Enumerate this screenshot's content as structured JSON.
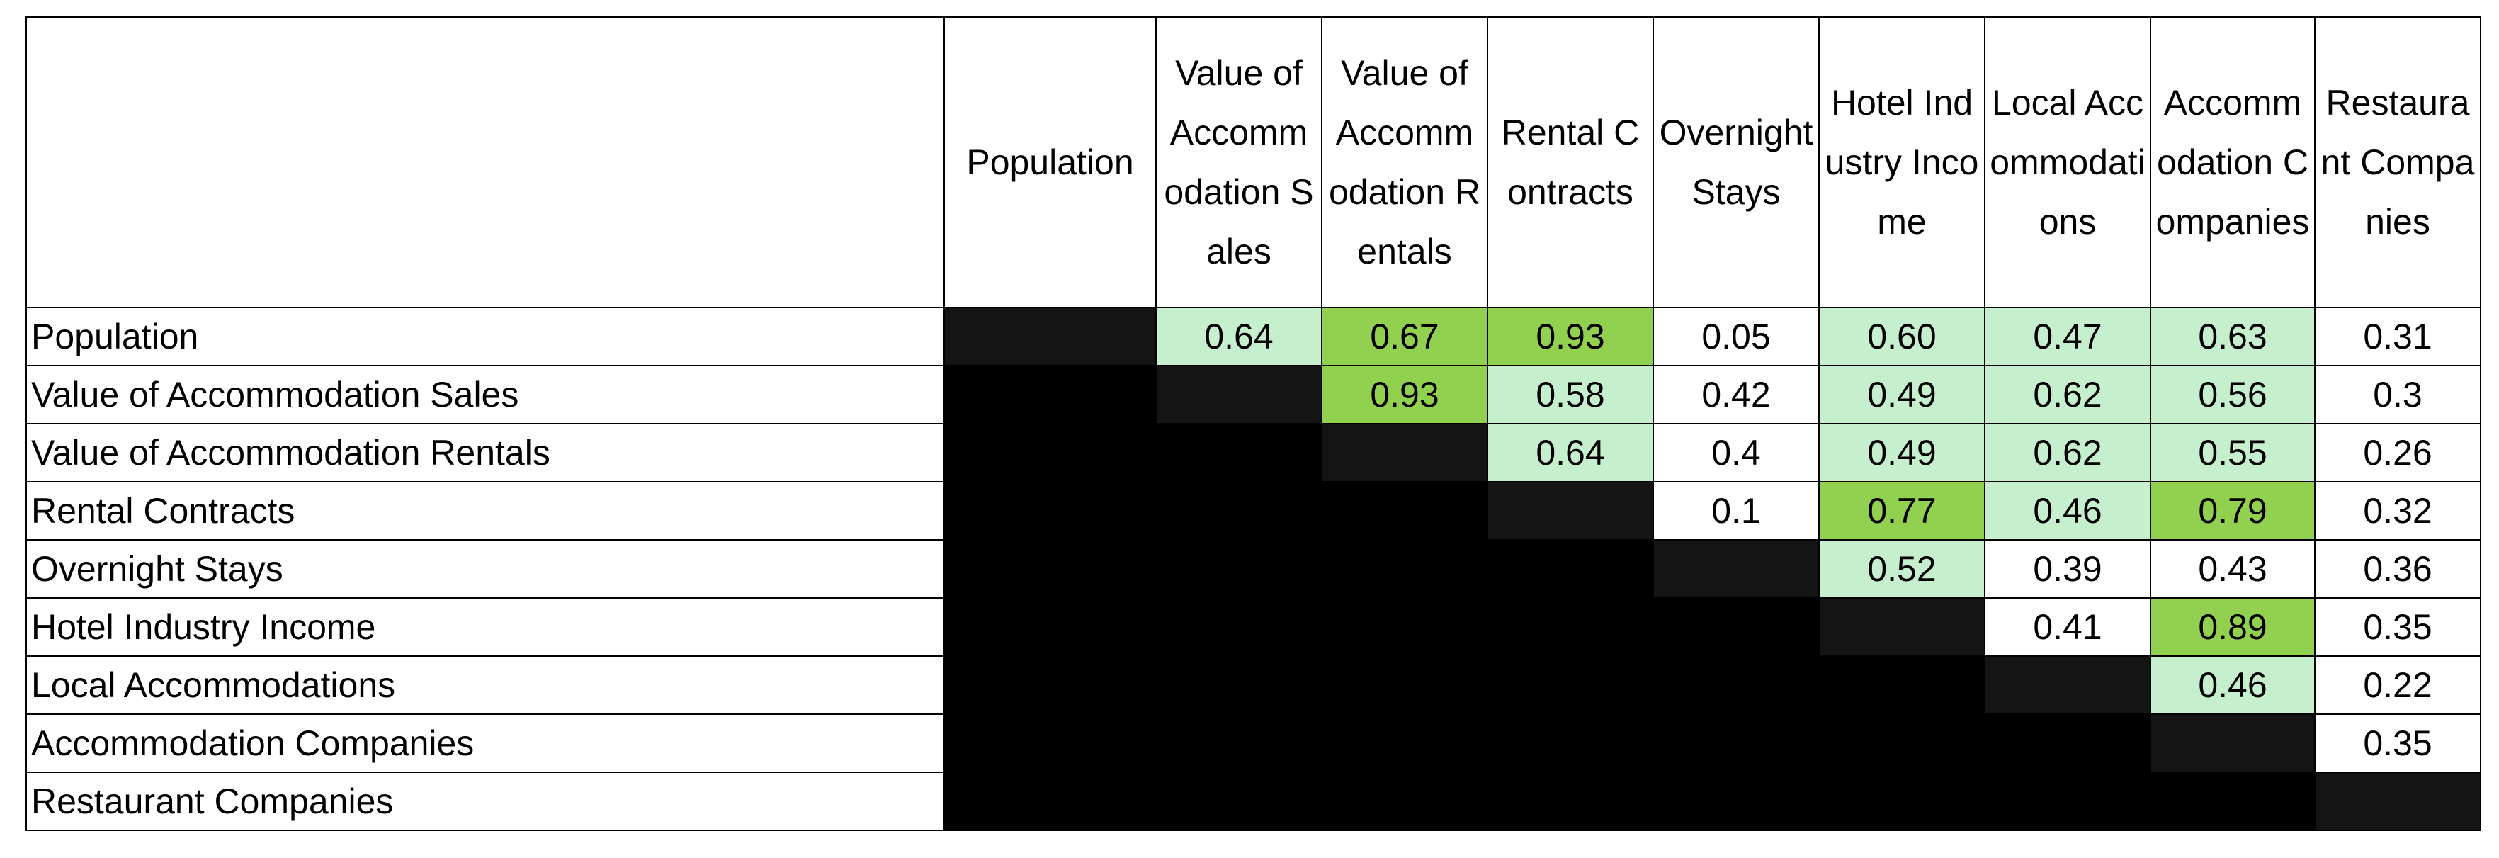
{
  "table": {
    "columns": [
      "Population",
      "Value of Accommodation Sales",
      "Value of Accommodation Rentals",
      "Rental Contracts",
      "Overnight Stays",
      "Hotel Industry Income",
      "Local Accommodations",
      "Accommodation Companies",
      "Restaurant Companies"
    ],
    "rows": [
      {
        "label": "Population",
        "cells": [
          null,
          "0.64",
          "0.67",
          "0.93",
          "0.05",
          "0.60",
          "0.47",
          "0.63",
          "0.31"
        ]
      },
      {
        "label": "Value of Accommodation Sales",
        "cells": [
          null,
          null,
          "0.93",
          "0.58",
          "0.42",
          "0.49",
          "0.62",
          "0.56",
          "0.3"
        ]
      },
      {
        "label": "Value of Accommodation Rentals",
        "cells": [
          null,
          null,
          null,
          "0.64",
          "0.4",
          "0.49",
          "0.62",
          "0.55",
          "0.26"
        ]
      },
      {
        "label": "Rental Contracts",
        "cells": [
          null,
          null,
          null,
          null,
          "0.1",
          "0.77",
          "0.46",
          "0.79",
          "0.32"
        ]
      },
      {
        "label": "Overnight Stays",
        "cells": [
          null,
          null,
          null,
          null,
          null,
          "0.52",
          "0.39",
          "0.43",
          "0.36"
        ]
      },
      {
        "label": "Hotel Industry Income",
        "cells": [
          null,
          null,
          null,
          null,
          null,
          null,
          "0.41",
          "0.89",
          "0.35"
        ]
      },
      {
        "label": "Local Accommodations",
        "cells": [
          null,
          null,
          null,
          null,
          null,
          null,
          null,
          "0.46",
          "0.22"
        ]
      },
      {
        "label": "Accommodation Companies",
        "cells": [
          null,
          null,
          null,
          null,
          null,
          null,
          null,
          null,
          "0.35"
        ]
      },
      {
        "label": "Restaurant Companies",
        "cells": [
          null,
          null,
          null,
          null,
          null,
          null,
          null,
          null,
          null
        ]
      }
    ]
  }
}
